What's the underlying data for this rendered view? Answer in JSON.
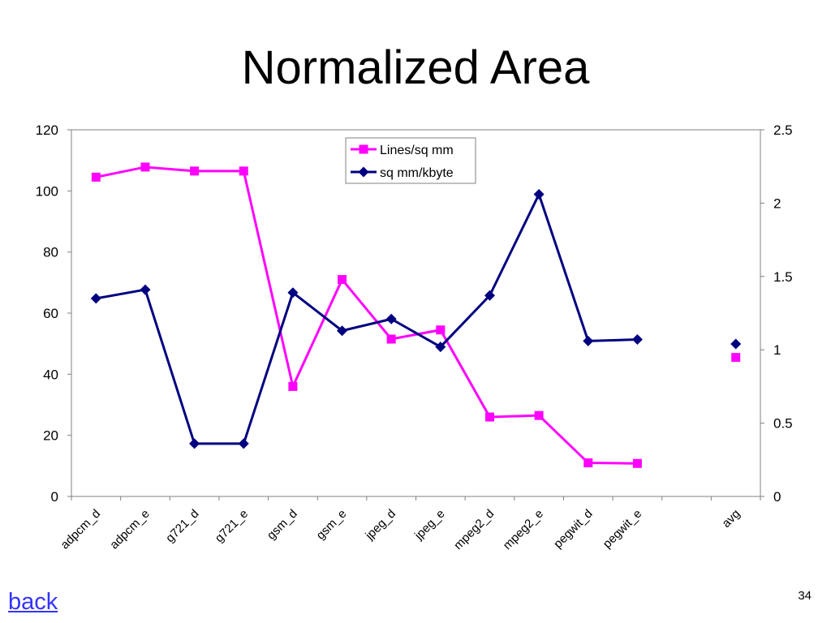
{
  "slide": {
    "title": "Normalized Area",
    "back_link": "back",
    "page_number": "34"
  },
  "chart_data": {
    "type": "line",
    "title": "Normalized Area",
    "categories": [
      "adpcm_d",
      "adpcm_e",
      "g721_d",
      "g721_e",
      "gsm_d",
      "gsm_e",
      "jpeg_d",
      "jpeg_e",
      "mpeg2_d",
      "mpeg2_e",
      "pegwit_d",
      "pegwit_e",
      "",
      "avg"
    ],
    "series": [
      {
        "name": "Lines/sq mm",
        "axis": "left",
        "color": "#ff00ff",
        "marker": "square",
        "values": [
          104.5,
          107.8,
          106.5,
          106.5,
          36,
          71,
          51.5,
          54.5,
          26,
          26.5,
          11,
          10.8,
          null,
          45.5
        ],
        "connect_last": false
      },
      {
        "name": "sq mm/kbyte",
        "axis": "right",
        "color": "#000080",
        "marker": "diamond",
        "values": [
          1.35,
          1.41,
          0.36,
          0.36,
          1.39,
          1.13,
          1.21,
          1.02,
          1.37,
          2.06,
          1.06,
          1.07,
          null,
          1.04
        ],
        "connect_last": false
      }
    ],
    "y_left": {
      "lim": [
        0,
        120
      ],
      "ticks": [
        "0",
        "20",
        "40",
        "60",
        "80",
        "100",
        "120"
      ]
    },
    "y_right": {
      "lim": [
        0,
        2.5
      ],
      "ticks": [
        "0",
        "0.5",
        "1",
        "1.5",
        "2",
        "2.5"
      ]
    },
    "legend": "top-center",
    "grid": false
  }
}
